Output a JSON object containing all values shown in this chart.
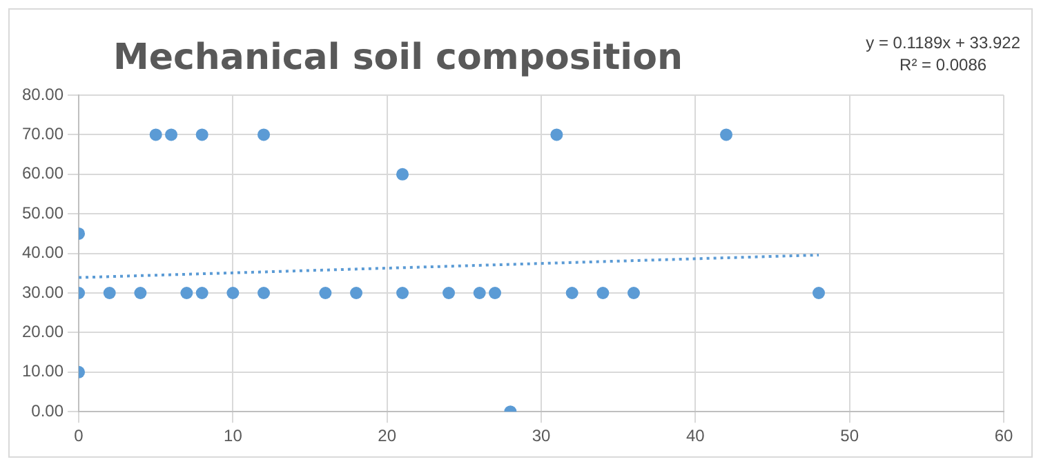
{
  "chart_data": {
    "type": "scatter",
    "title": "Mechanical soil composition",
    "annotations": [
      "y = 0.1189x + 33.922",
      "R² = 0.0086"
    ],
    "x": [
      0,
      0,
      0,
      2,
      4,
      5,
      6,
      7,
      8,
      8,
      10,
      12,
      12,
      16,
      18,
      21,
      21,
      24,
      26,
      27,
      28,
      31,
      32,
      34,
      36,
      42,
      48
    ],
    "series": [
      {
        "type": "scatter",
        "color": "#5b9bd5",
        "marker": "circle",
        "values": [
          30,
          45,
          10,
          30,
          30,
          70,
          70,
          30,
          30,
          70,
          30,
          30,
          70,
          30,
          30,
          30,
          60,
          30,
          30,
          30,
          0,
          70,
          30,
          30,
          30,
          70,
          30
        ]
      },
      {
        "type": "line",
        "color": "#5b9bd5",
        "line_style": "dotted",
        "marker": "none",
        "x": [
          0,
          48
        ],
        "values": [
          33.9,
          39.6
        ]
      }
    ],
    "xlim": [
      0,
      60
    ],
    "xticks": [
      0,
      10,
      20,
      30,
      40,
      50,
      60
    ],
    "ylim": [
      0,
      80
    ],
    "yticks": [
      {
        "value": 0,
        "label": "0.00"
      },
      {
        "value": 10,
        "label": "10.00"
      },
      {
        "value": 20,
        "label": "20.00"
      },
      {
        "value": 30,
        "label": "30.00"
      },
      {
        "value": 40,
        "label": "40.00"
      },
      {
        "value": 50,
        "label": "50.00"
      },
      {
        "value": 60,
        "label": "60.00"
      },
      {
        "value": 70,
        "label": "70.00"
      },
      {
        "value": 80,
        "label": "80.00"
      }
    ],
    "grid": true,
    "legend": false
  }
}
